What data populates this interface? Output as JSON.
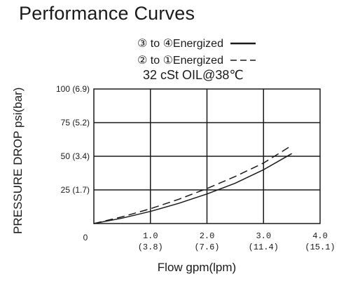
{
  "page": {
    "title": "Performance Curves"
  },
  "chart_data": {
    "type": "line",
    "legend": [
      {
        "label": "③ to ④Energized",
        "style": "solid",
        "series": "s34"
      },
      {
        "label": "② to ①Energized",
        "style": "dashed",
        "series": "s21"
      }
    ],
    "condition": "32 cSt OIL@38℃",
    "xlabel": "Flow gpm(lpm)",
    "ylabel": "PRESSURE DROP psi(bar)",
    "xlim": [
      0,
      4
    ],
    "ylim": [
      0,
      100
    ],
    "x_ticks": [
      {
        "value": 0,
        "label": "0",
        "sub": ""
      },
      {
        "value": 1,
        "label": "1.0",
        "sub": "(3.8)"
      },
      {
        "value": 2,
        "label": "2.0",
        "sub": "(7.6)"
      },
      {
        "value": 3,
        "label": "3.0",
        "sub": "(11.4)"
      },
      {
        "value": 4,
        "label": "4.0",
        "sub": "(15.1)"
      }
    ],
    "y_ticks": [
      {
        "value": 25,
        "label": "25 (1.7)"
      },
      {
        "value": 50,
        "label": "50 (3.4)"
      },
      {
        "value": 75,
        "label": "75 (5.2)"
      },
      {
        "value": 100,
        "label": "100 (6.9)"
      }
    ],
    "grid": true,
    "series": [
      {
        "id": "s34",
        "style": "solid",
        "x": [
          0,
          0.5,
          1.0,
          1.5,
          2.0,
          2.5,
          3.0,
          3.5
        ],
        "y": [
          0,
          4,
          9,
          15,
          22,
          30,
          40,
          52
        ]
      },
      {
        "id": "s21",
        "style": "dashed",
        "x": [
          0,
          0.5,
          1.0,
          1.5,
          2.0,
          2.5,
          3.0,
          3.5
        ],
        "y": [
          0,
          5,
          11,
          18,
          26,
          35,
          45,
          58
        ]
      }
    ]
  }
}
